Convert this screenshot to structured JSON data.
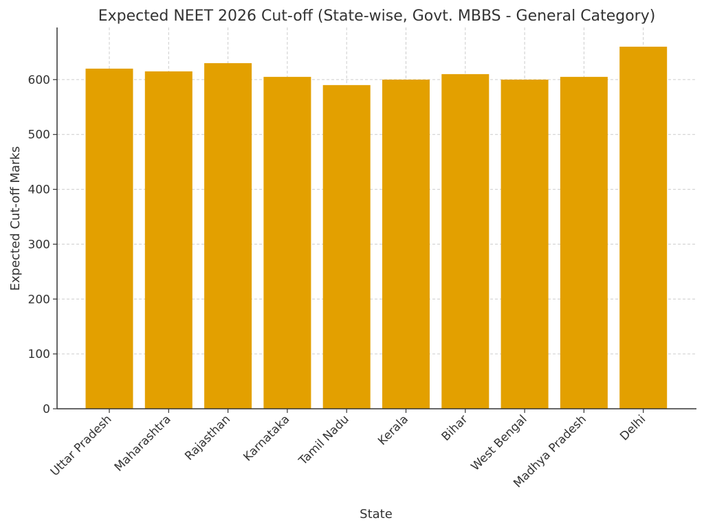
{
  "chart_data": {
    "type": "bar",
    "title": "Expected NEET 2026 Cut-off (State-wise, Govt. MBBS - General Category)",
    "xlabel": "State",
    "ylabel": "Expected Cut-off Marks",
    "categories": [
      "Uttar Pradesh",
      "Maharashtra",
      "Rajasthan",
      "Karnataka",
      "Tamil Nadu",
      "Kerala",
      "Bihar",
      "West Bengal",
      "Madhya Pradesh",
      "Delhi"
    ],
    "values": [
      620,
      615,
      630,
      605,
      590,
      600,
      610,
      600,
      605,
      660
    ],
    "ylim": [
      0,
      695
    ],
    "yticks": [
      0,
      100,
      200,
      300,
      400,
      500,
      600
    ],
    "grid": true,
    "bar_color": "#E3A000"
  }
}
